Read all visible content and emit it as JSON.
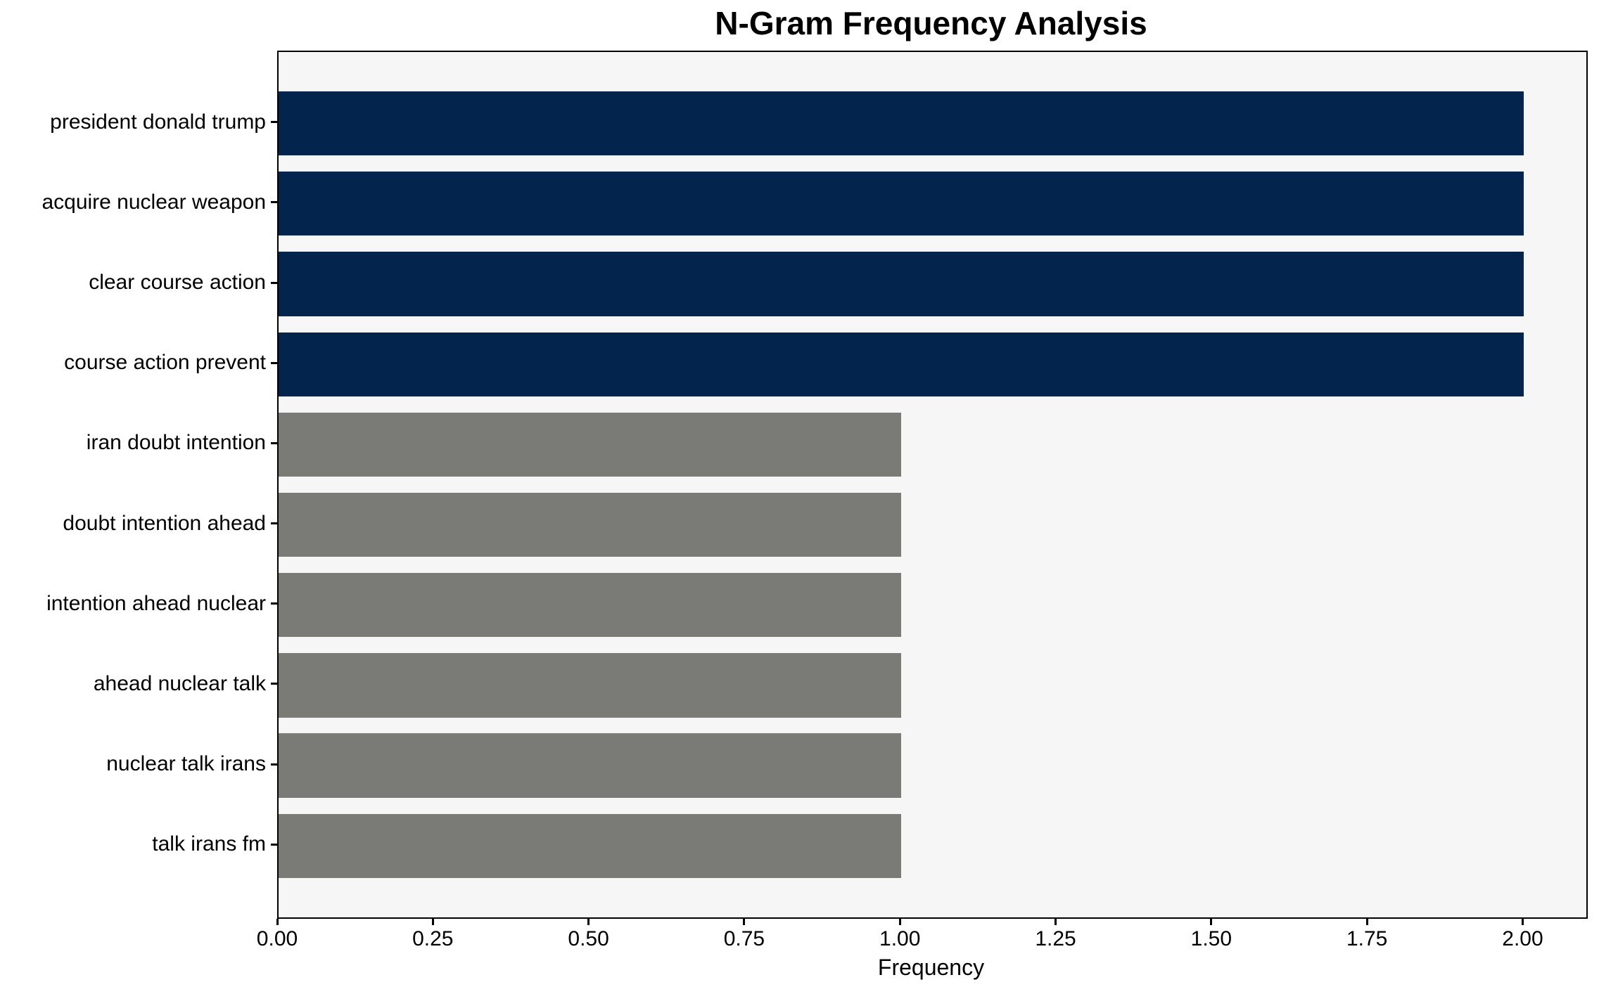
{
  "title": "N-Gram Frequency Analysis",
  "chart_data": {
    "type": "bar",
    "orientation": "horizontal",
    "title": "N-Gram Frequency Analysis",
    "xlabel": "Frequency",
    "ylabel": "",
    "categories": [
      "president donald trump",
      "acquire nuclear weapon",
      "clear course action",
      "course action prevent",
      "iran doubt intention",
      "doubt intention ahead",
      "intention ahead nuclear",
      "ahead nuclear talk",
      "nuclear talk irans",
      "talk irans fm"
    ],
    "values": [
      2.0,
      2.0,
      2.0,
      2.0,
      1.0,
      1.0,
      1.0,
      1.0,
      1.0,
      1.0
    ],
    "bar_colors": [
      "#02244d",
      "#02244d",
      "#02244d",
      "#02244d",
      "#7a7a77",
      "#7a7a77",
      "#7a7a77",
      "#7a7a77",
      "#7a7a77",
      "#7a7a77"
    ],
    "xlim": [
      0,
      2.1
    ],
    "x_ticks": [
      {
        "value": 0.0,
        "label": "0.00"
      },
      {
        "value": 0.25,
        "label": "0.25"
      },
      {
        "value": 0.5,
        "label": "0.50"
      },
      {
        "value": 0.75,
        "label": "0.75"
      },
      {
        "value": 1.0,
        "label": "1.00"
      },
      {
        "value": 1.25,
        "label": "1.25"
      },
      {
        "value": 1.5,
        "label": "1.50"
      },
      {
        "value": 1.75,
        "label": "1.75"
      },
      {
        "value": 2.0,
        "label": "2.00"
      }
    ],
    "grid": false,
    "legend": null,
    "colors": {
      "high_frequency_bar": "#02244d",
      "low_frequency_bar": "#7a7a77",
      "plot_background": "#f6f6f6",
      "figure_background": "#ffffff",
      "spine": "#000000",
      "text": "#000000"
    }
  }
}
